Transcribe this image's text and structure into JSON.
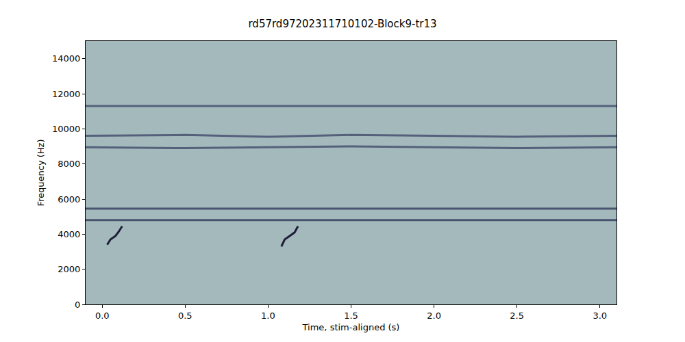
{
  "chart_data": {
    "type": "line",
    "title": "rd57rd97202311710102-Block9-tr13",
    "x_label": "Time, stim-aligned (s)",
    "y_label": "Frequency (Hz)",
    "color": "#a3b9bc",
    "xlim": [
      -0.1,
      3.1
    ],
    "xticks": [
      {
        "value": 0,
        "label": "0.0"
      },
      {
        "value": 0.5,
        "label": "0.5"
      },
      {
        "value": 1,
        "label": "1.0"
      },
      {
        "value": 1.5,
        "label": "1.5"
      },
      {
        "value": 2,
        "label": "2.0"
      },
      {
        "value": 2.5,
        "label": "2.5"
      },
      {
        "value": 3,
        "label": "3.0"
      }
    ],
    "ylim": [
      0,
      15000
    ],
    "yticks": [
      0,
      2000,
      4000,
      6000,
      8000,
      10000,
      12000,
      14000
    ],
    "grid": false,
    "series": [
      {
        "color": "#55607a",
        "x": [
          -0.1,
          3.1
        ],
        "values": [
          11300,
          11300
        ]
      },
      {
        "color": "#55607a",
        "x": [
          -0.1,
          0.5,
          1.0,
          1.5,
          2.0,
          2.5,
          3.1
        ],
        "values": [
          9600,
          9650,
          9550,
          9650,
          9600,
          9550,
          9600
        ]
      },
      {
        "color": "#55607a",
        "x": [
          -0.1,
          0.5,
          1.0,
          1.5,
          2.0,
          2.5,
          3.1
        ],
        "values": [
          8950,
          8900,
          8950,
          9000,
          8950,
          8900,
          8950
        ]
      },
      {
        "color": "#4a5470",
        "x": [
          -0.1,
          3.1
        ],
        "values": [
          5450,
          5450
        ]
      },
      {
        "color": "#4a5470",
        "x": [
          -0.1,
          3.1
        ],
        "values": [
          4800,
          4800
        ]
      },
      {
        "color": "#1e1e38",
        "x": [
          0.03,
          0.05,
          0.08,
          0.1,
          0.12
        ],
        "values": [
          3400,
          3700,
          3900,
          4150,
          4450
        ]
      },
      {
        "color": "#1e1e38",
        "x": [
          1.08,
          1.1,
          1.13,
          1.16,
          1.18
        ],
        "values": [
          3300,
          3700,
          3900,
          4100,
          4450
        ]
      }
    ]
  }
}
